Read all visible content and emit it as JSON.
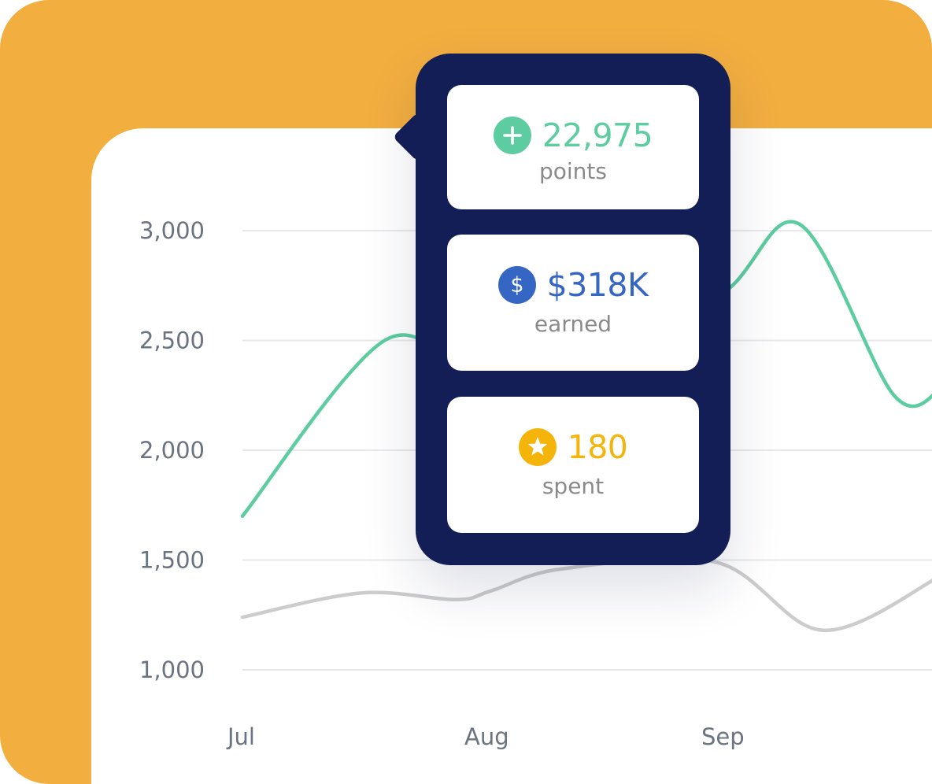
{
  "colors": {
    "background": "#F2AE3F",
    "panel": "#FFFFFF",
    "tooltip": "#131E56",
    "points": "#5DCCA0",
    "earned": "#3566C4",
    "spent": "#F4B40A",
    "gridline": "#E8E8EC",
    "tick_text": "#6B7380"
  },
  "tooltip": {
    "points": {
      "icon": "plus-circle-icon",
      "value": "22,975",
      "caption": "points"
    },
    "earned": {
      "icon": "dollar-circle-icon",
      "value": "$318K",
      "caption": "earned"
    },
    "spent": {
      "icon": "star-circle-icon",
      "value": "180",
      "caption": "spent"
    }
  },
  "chart_data": {
    "type": "line",
    "title": "",
    "xlabel": "",
    "ylabel": "",
    "categories": [
      "Jul",
      "Aug",
      "Sep"
    ],
    "yticks": [
      "1,000",
      "1,500",
      "2,000",
      "2,500",
      "3,000"
    ],
    "ytick_values": [
      1000,
      1500,
      2000,
      2500,
      3000
    ],
    "ylim": [
      1000,
      3000
    ],
    "grid": true,
    "series": [
      {
        "color": "#5DCCA0",
        "points": [
          [
            0,
            1700
          ],
          [
            0.6,
            2500
          ],
          [
            1.0,
            2350
          ],
          [
            1.4,
            2600
          ],
          [
            2.0,
            2700
          ],
          [
            2.35,
            3030
          ],
          [
            2.75,
            2250
          ],
          [
            2.95,
            2280
          ]
        ]
      },
      {
        "color": "#CCCCCC",
        "points": [
          [
            0,
            1240
          ],
          [
            0.5,
            1350
          ],
          [
            0.9,
            1320
          ],
          [
            1.05,
            1360
          ],
          [
            1.35,
            1460
          ],
          [
            2.0,
            1490
          ],
          [
            2.45,
            1180
          ],
          [
            2.95,
            1430
          ]
        ]
      }
    ]
  }
}
